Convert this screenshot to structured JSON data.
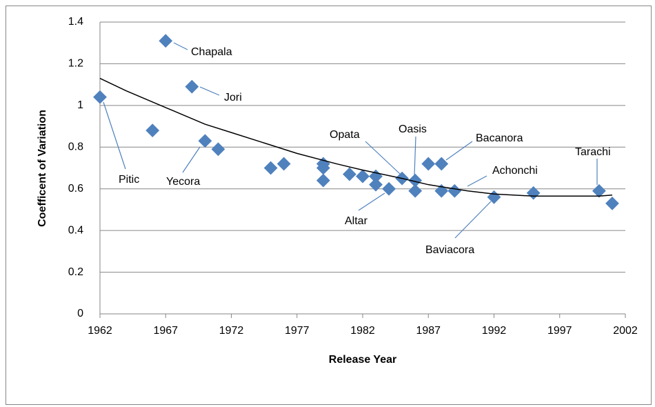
{
  "chart_data": {
    "type": "scatter",
    "x_label": "Release Year",
    "y_label": "Coefficent of Variation",
    "xlim": [
      1962,
      2002
    ],
    "xticks": [
      1962,
      1967,
      1972,
      1977,
      1982,
      1987,
      1992,
      1997,
      2002
    ],
    "ylim": [
      0,
      1.4
    ],
    "yticks": [
      0,
      0.2,
      0.4,
      0.6,
      0.8,
      1,
      1.2,
      1.4
    ],
    "grid": true,
    "series": [
      {
        "color": "#4f81bd",
        "x": [
          1962,
          1966,
          1967,
          1969,
          1970,
          1971,
          1975,
          1976,
          1979,
          1979,
          1979,
          1981,
          1982,
          1983,
          1983,
          1984,
          1985,
          1986,
          1986,
          1987,
          1988,
          1988,
          1989,
          1992,
          1995,
          2000,
          2001
        ],
        "values": [
          1.04,
          0.88,
          1.31,
          1.09,
          0.83,
          0.79,
          0.7,
          0.72,
          0.72,
          0.7,
          0.64,
          0.67,
          0.66,
          0.66,
          0.62,
          0.6,
          0.65,
          0.64,
          0.59,
          0.72,
          0.72,
          0.59,
          0.59,
          0.56,
          0.58,
          0.59,
          0.53
        ]
      },
      {
        "type": "line",
        "color": "#000000",
        "x": [
          1962,
          1964,
          1967,
          1970,
          1972,
          1975,
          1977,
          1980,
          1982,
          1985,
          1987,
          1990,
          1992,
          1995,
          1997,
          2000,
          2001
        ],
        "values": [
          1.13,
          1.07,
          0.99,
          0.91,
          0.87,
          0.81,
          0.77,
          0.72,
          0.69,
          0.65,
          0.62,
          0.59,
          0.575,
          0.565,
          0.565,
          0.565,
          0.57
        ]
      }
    ],
    "annotations": [
      "Chapala",
      "Jori",
      "Pitic",
      "Yecora",
      "Opata",
      "Oasis",
      "Bacanora",
      "Achonchi",
      "Altar",
      "Baviacora",
      "Tarachi"
    ]
  }
}
